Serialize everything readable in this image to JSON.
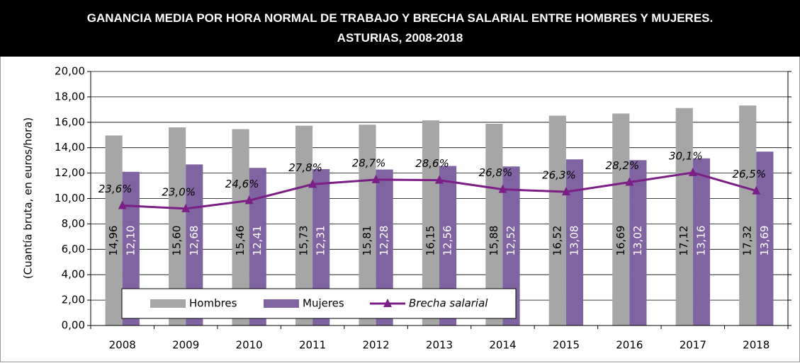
{
  "chart_data": {
    "type": "bar",
    "title": [
      "GANANCIA MEDIA POR HORA NORMAL DE TRABAJO Y BRECHA SALARIAL ENTRE HOMBRES Y MUJERES.",
      "ASTURIAS, 2008-2018"
    ],
    "y_label": "(Cuantía bruta, en euros/hora)",
    "categories": [
      "2008",
      "2009",
      "2010",
      "2011",
      "2012",
      "2013",
      "2014",
      "2015",
      "2016",
      "2017",
      "2018"
    ],
    "series": [
      {
        "name": "Hombres",
        "color": "#a6a6a6",
        "type": "bar",
        "values": [
          14.96,
          15.6,
          15.46,
          15.73,
          15.81,
          16.15,
          15.88,
          16.52,
          16.69,
          17.12,
          17.32
        ],
        "value_labels": [
          "14,96",
          "15,60",
          "15,46",
          "15,73",
          "15,81",
          "16,15",
          "15,88",
          "16,52",
          "16,69",
          "17,12",
          "17,32"
        ]
      },
      {
        "name": "Mujeres",
        "color": "#8064a2",
        "type": "bar",
        "values": [
          12.1,
          12.68,
          12.41,
          12.31,
          12.28,
          12.56,
          12.52,
          13.08,
          13.02,
          13.16,
          13.69
        ],
        "value_labels": [
          "12,10",
          "12,68",
          "12,41",
          "12,31",
          "12,28",
          "12,56",
          "12,52",
          "13,08",
          "13,02",
          "13,16",
          "13,69"
        ]
      },
      {
        "name": "Brecha salarial",
        "color": "#7b1f86",
        "type": "line",
        "axis": "y2",
        "values": [
          23.6,
          23.0,
          24.6,
          27.8,
          28.7,
          28.6,
          26.8,
          26.3,
          28.2,
          30.1,
          26.5
        ],
        "value_labels": [
          "23,6%",
          "23,0%",
          "24,6%",
          "27,8%",
          "28,7%",
          "28,6%",
          "26,8%",
          "26,3%",
          "28,2%",
          "30,1%",
          "26,5%"
        ]
      }
    ],
    "ylim": [
      0,
      20
    ],
    "yticks": [
      {
        "value": 0,
        "label": "0,00"
      },
      {
        "value": 2,
        "label": "2,00"
      },
      {
        "value": 4,
        "label": "4,00"
      },
      {
        "value": 6,
        "label": "6,00"
      },
      {
        "value": 8,
        "label": "8,00"
      },
      {
        "value": 10,
        "label": "10,00"
      },
      {
        "value": 12,
        "label": "12,00"
      },
      {
        "value": 14,
        "label": "14,00"
      },
      {
        "value": 16,
        "label": "16,00"
      },
      {
        "value": 18,
        "label": "18,00"
      },
      {
        "value": 20,
        "label": "20,00"
      }
    ],
    "y2lim": [
      0,
      50
    ],
    "grid": true
  }
}
